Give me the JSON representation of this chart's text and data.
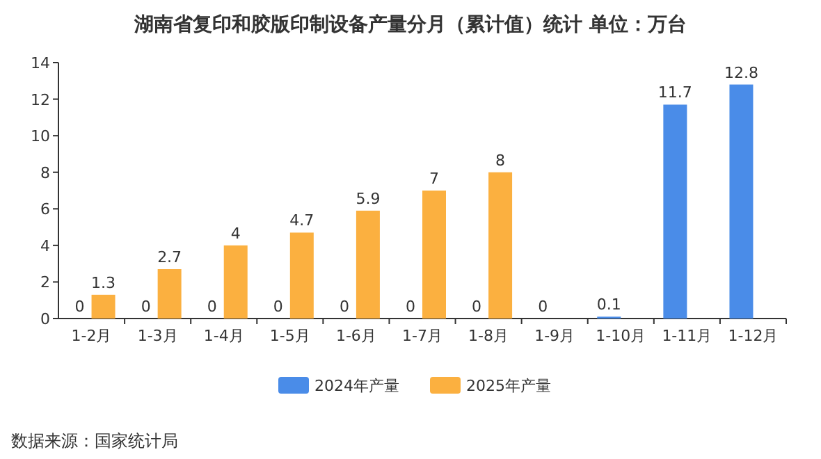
{
  "chart_data": {
    "type": "bar",
    "title": "湖南省复印和胶版印制设备产量分月（累计值）统计  单位：万台",
    "categories": [
      "1-2月",
      "1-3月",
      "1-4月",
      "1-5月",
      "1-6月",
      "1-7月",
      "1-8月",
      "1-9月",
      "1-10月",
      "1-11月",
      "1-12月"
    ],
    "series": [
      {
        "name": "2024年产量",
        "color": "#4a8ce8",
        "values": [
          0,
          0,
          0,
          0,
          0,
          0,
          0,
          0,
          0.1,
          11.7,
          12.8
        ]
      },
      {
        "name": "2025年产量",
        "color": "#fbb040",
        "values": [
          1.3,
          2.7,
          4,
          4.7,
          5.9,
          7,
          8,
          null,
          null,
          null,
          null
        ]
      }
    ],
    "ylim": [
      0,
      14
    ],
    "yticks": [
      0,
      2,
      4,
      6,
      8,
      10,
      12,
      14
    ],
    "data_labels": true,
    "legend": "bottom",
    "grid": false,
    "annotations": [
      "数据来源：国家统计局"
    ]
  }
}
